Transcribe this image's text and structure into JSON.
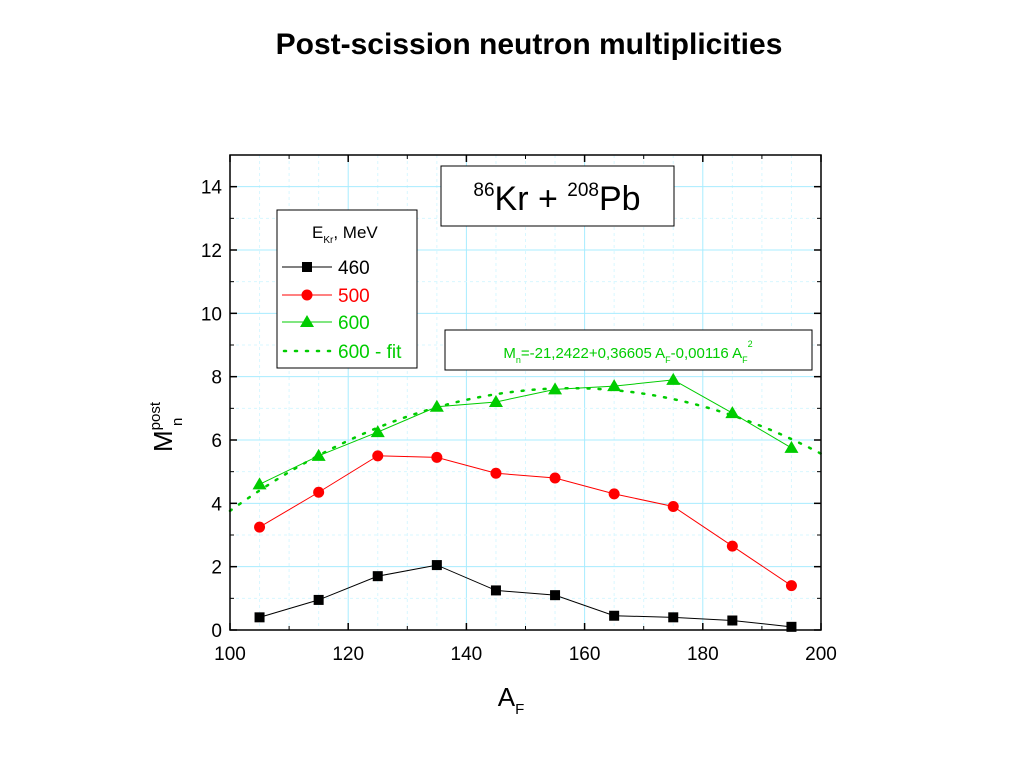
{
  "title": "Post-scission neutron multiplicities",
  "chart_data": {
    "type": "line",
    "xlabel": {
      "main": "A",
      "sub": "F"
    },
    "ylabel": {
      "main": "M",
      "sup": "post",
      "sub": "n"
    },
    "xlim": [
      100,
      200
    ],
    "ylim": [
      0,
      15
    ],
    "xticks": [
      "100",
      "120",
      "140",
      "160",
      "180",
      "200"
    ],
    "yticks": [
      "0",
      "2",
      "4",
      "6",
      "8",
      "10",
      "12",
      "14"
    ],
    "grid": true,
    "reaction": {
      "sup1": "86",
      "el1": "Kr + ",
      "sup2": "208",
      "el2": "Pb"
    },
    "legend": {
      "position": "top-left",
      "title": {
        "main": "E",
        "sub": "Kr",
        "rest": ", MeV"
      },
      "entries": [
        {
          "label": "460",
          "color": "#000000"
        },
        {
          "label": "500",
          "color": "#ff0000"
        },
        {
          "label": "600",
          "color": "#00cc00"
        },
        {
          "label": "600 - fit",
          "color": "#00cc00"
        }
      ]
    },
    "fit_formula": {
      "a": "M",
      "a_sub": "n",
      "b": "=-21,2422+0,36605 A",
      "b_sub": "F",
      "c": "-0,00116 A",
      "c_sub": "F",
      "c_sup": "2"
    },
    "fit_coefficients": [
      -21.2422,
      0.36605,
      -0.00116
    ],
    "series": [
      {
        "name": "460",
        "marker": "square",
        "color": "#000000",
        "x": [
          105,
          115,
          125,
          135,
          145,
          155,
          165,
          175,
          185,
          195
        ],
        "y": [
          0.4,
          0.95,
          1.7,
          2.05,
          1.25,
          1.1,
          0.45,
          0.4,
          0.3,
          0.1
        ]
      },
      {
        "name": "500",
        "marker": "circle",
        "color": "#ff0000",
        "x": [
          105,
          115,
          125,
          135,
          145,
          155,
          165,
          175,
          185,
          195
        ],
        "y": [
          3.25,
          4.35,
          5.5,
          5.45,
          4.95,
          4.8,
          4.3,
          3.9,
          2.65,
          1.4
        ]
      },
      {
        "name": "600",
        "marker": "triangle",
        "color": "#00cc00",
        "x": [
          105,
          115,
          125,
          135,
          145,
          155,
          165,
          175,
          185,
          195
        ],
        "y": [
          4.6,
          5.5,
          6.25,
          7.05,
          7.2,
          7.6,
          7.7,
          7.9,
          6.85,
          5.75
        ]
      }
    ]
  }
}
